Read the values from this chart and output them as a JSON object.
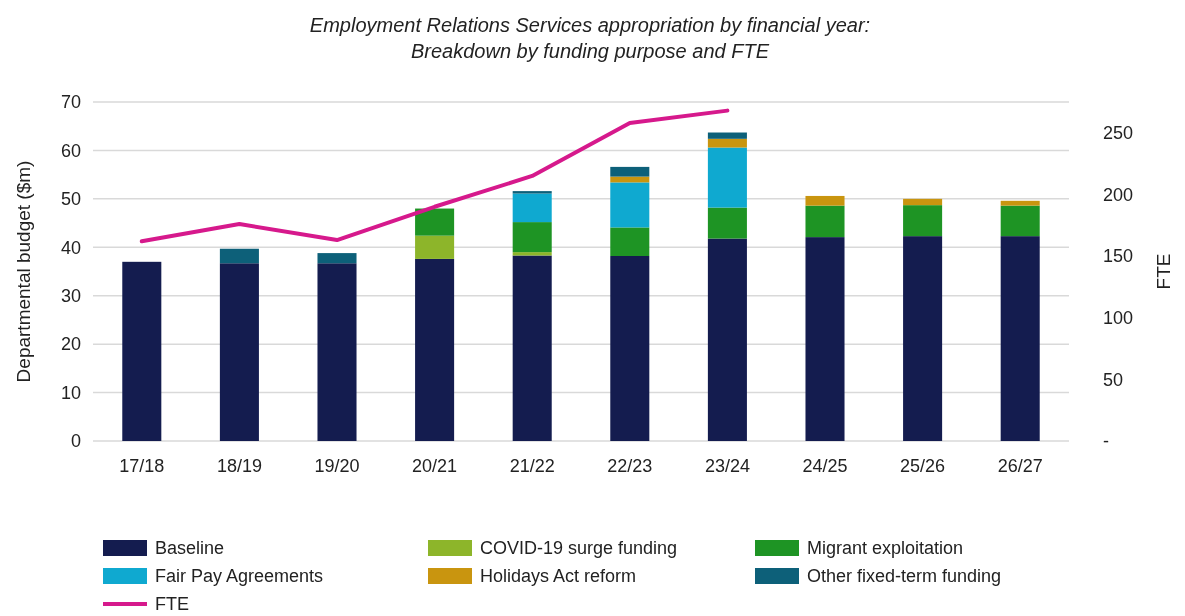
{
  "chart_data": {
    "type": "bar",
    "title": "Employment Relations Services appropriation by financial year:\nBreakdown by funding purpose and FTE",
    "ylabel": "Departmental budget ($m)",
    "y2label": "FTE",
    "categories": [
      "17/18",
      "18/19",
      "19/20",
      "20/21",
      "21/22",
      "22/23",
      "23/24",
      "24/25",
      "25/26",
      "26/27"
    ],
    "stacked": true,
    "grid": "y",
    "legend": "bottom",
    "ylim": [
      0,
      70
    ],
    "yticks": [
      0,
      10,
      20,
      30,
      40,
      50,
      60,
      70
    ],
    "y2lim": [
      0,
      275
    ],
    "y2ticks": [
      {
        "value": 0,
        "label": "-"
      },
      50,
      100,
      150,
      200,
      250
    ],
    "series": [
      {
        "name": "Baseline",
        "color": "#141c4f",
        "values": [
          37,
          36.7,
          36.7,
          37.6,
          38.3,
          38.2,
          41.8,
          42.1,
          42.3,
          42.3
        ]
      },
      {
        "name": "COVID-19 surge funding",
        "color": "#8db52a",
        "values": [
          null,
          null,
          null,
          4.8,
          0.7,
          null,
          null,
          null,
          null,
          null
        ]
      },
      {
        "name": "Migrant exploitation",
        "color": "#1e9424",
        "values": [
          null,
          null,
          null,
          5.6,
          6.2,
          5.9,
          6.4,
          6.5,
          6.4,
          6.3
        ]
      },
      {
        "name": "Fair Pay Agreements",
        "color": "#0fa9d0",
        "values": [
          null,
          null,
          null,
          null,
          5.9,
          9.3,
          12.4,
          null,
          null,
          null
        ]
      },
      {
        "name": "Holidays Act reform",
        "color": "#c9950f",
        "values": [
          null,
          null,
          null,
          null,
          null,
          1.2,
          1.8,
          2.0,
          1.3,
          1.0
        ]
      },
      {
        "name": "Other fixed-term funding",
        "color": "#0d6079",
        "values": [
          null,
          3.0,
          2.1,
          null,
          0.5,
          2.0,
          1.3,
          null,
          null,
          null
        ]
      },
      {
        "name": "FTE",
        "type": "line",
        "axis": "y2",
        "color": "#d6198c",
        "values": [
          162,
          176,
          163,
          190,
          215,
          258,
          268,
          null,
          null,
          null
        ]
      }
    ]
  }
}
